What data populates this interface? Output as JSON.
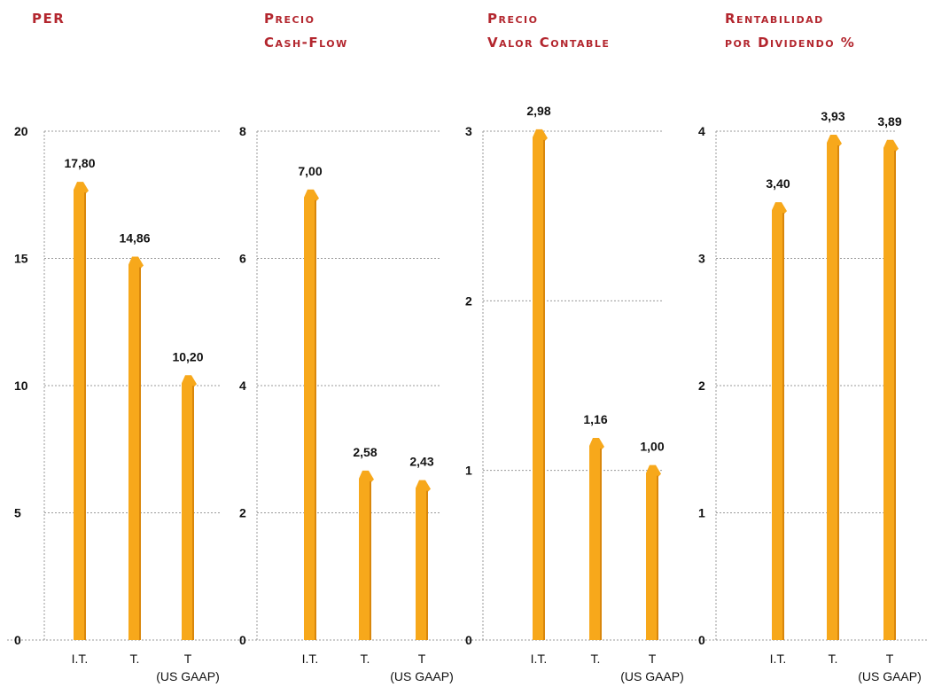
{
  "chart_data": [
    {
      "type": "bar",
      "title_lines": [
        "PER"
      ],
      "categories": [
        "I.T.",
        "T.",
        "T"
      ],
      "category_sublabels": [
        "",
        "",
        "(US GAAP)"
      ],
      "values": [
        17.8,
        14.86,
        10.2
      ],
      "value_labels": [
        "17,80",
        "14,86",
        "10,20"
      ],
      "ylim": [
        0,
        20
      ],
      "yticks": [
        0,
        5,
        10,
        15,
        20
      ],
      "ytick_labels": [
        "0",
        "5",
        "10",
        "15",
        "20"
      ]
    },
    {
      "type": "bar",
      "title_lines": [
        "Precio",
        "Cash-Flow"
      ],
      "categories": [
        "I.T.",
        "T.",
        "T"
      ],
      "category_sublabels": [
        "",
        "",
        "(US GAAP)"
      ],
      "values": [
        7.0,
        2.58,
        2.43
      ],
      "value_labels": [
        "7,00",
        "2,58",
        "2,43"
      ],
      "ylim": [
        0,
        8
      ],
      "yticks": [
        0,
        2,
        4,
        6,
        8
      ],
      "ytick_labels": [
        "0",
        "2",
        "4",
        "6",
        "8"
      ]
    },
    {
      "type": "bar",
      "title_lines": [
        "Precio",
        "Valor Contable"
      ],
      "categories": [
        "I.T.",
        "T.",
        "T"
      ],
      "category_sublabels": [
        "",
        "",
        "(US GAAP)"
      ],
      "values": [
        2.98,
        1.16,
        1.0
      ],
      "value_labels": [
        "2,98",
        "1,16",
        "1,00"
      ],
      "ylim": [
        0,
        3
      ],
      "yticks": [
        0,
        1,
        2,
        3
      ],
      "ytick_labels": [
        "0",
        "1",
        "2",
        "3"
      ]
    },
    {
      "type": "bar",
      "title_lines": [
        "Rentabilidad",
        "por Dividendo %"
      ],
      "categories": [
        "I.T.",
        "T.",
        "T"
      ],
      "category_sublabels": [
        "",
        "",
        "(US GAAP)"
      ],
      "values": [
        3.4,
        3.93,
        3.89
      ],
      "value_labels": [
        "3,40",
        "3,93",
        "3,89"
      ],
      "ylim": [
        0,
        4
      ],
      "yticks": [
        0,
        1,
        2,
        3,
        4
      ],
      "ytick_labels": [
        "0",
        "1",
        "2",
        "3",
        "4"
      ]
    }
  ],
  "colors": {
    "bar": "#f7a81b",
    "bar_dark": "#d9870c",
    "title": "#b3262e",
    "grid": "#9a9a9a",
    "text": "#111111"
  }
}
